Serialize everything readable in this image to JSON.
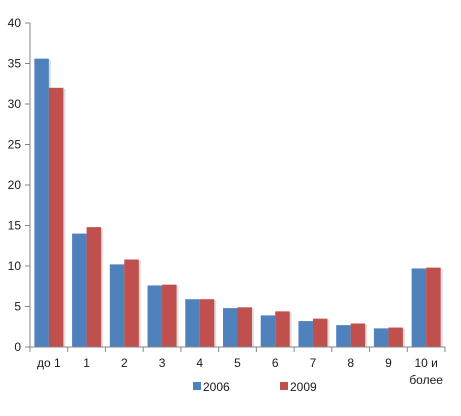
{
  "chart_data": {
    "type": "bar",
    "categories": [
      [
        "до 1"
      ],
      [
        "1"
      ],
      [
        "2"
      ],
      [
        "3"
      ],
      [
        "4"
      ],
      [
        "5"
      ],
      [
        "6"
      ],
      [
        "7"
      ],
      [
        "8"
      ],
      [
        "9"
      ],
      [
        "10 и",
        "более"
      ]
    ],
    "series": [
      {
        "name": "2006",
        "color": "#4f81bd",
        "values": [
          35.6,
          14.0,
          10.2,
          7.6,
          5.9,
          4.8,
          3.9,
          3.2,
          2.7,
          2.3,
          9.7
        ]
      },
      {
        "name": "2009",
        "color": "#c0504d",
        "values": [
          32.0,
          14.8,
          10.8,
          7.7,
          5.9,
          4.9,
          4.4,
          3.5,
          2.9,
          2.4,
          9.8
        ]
      }
    ],
    "ylim": [
      0,
      40
    ],
    "yticks": [
      0,
      5,
      10,
      15,
      20,
      25,
      30,
      35,
      40
    ],
    "legend_position": "bottom",
    "grid": false
  }
}
